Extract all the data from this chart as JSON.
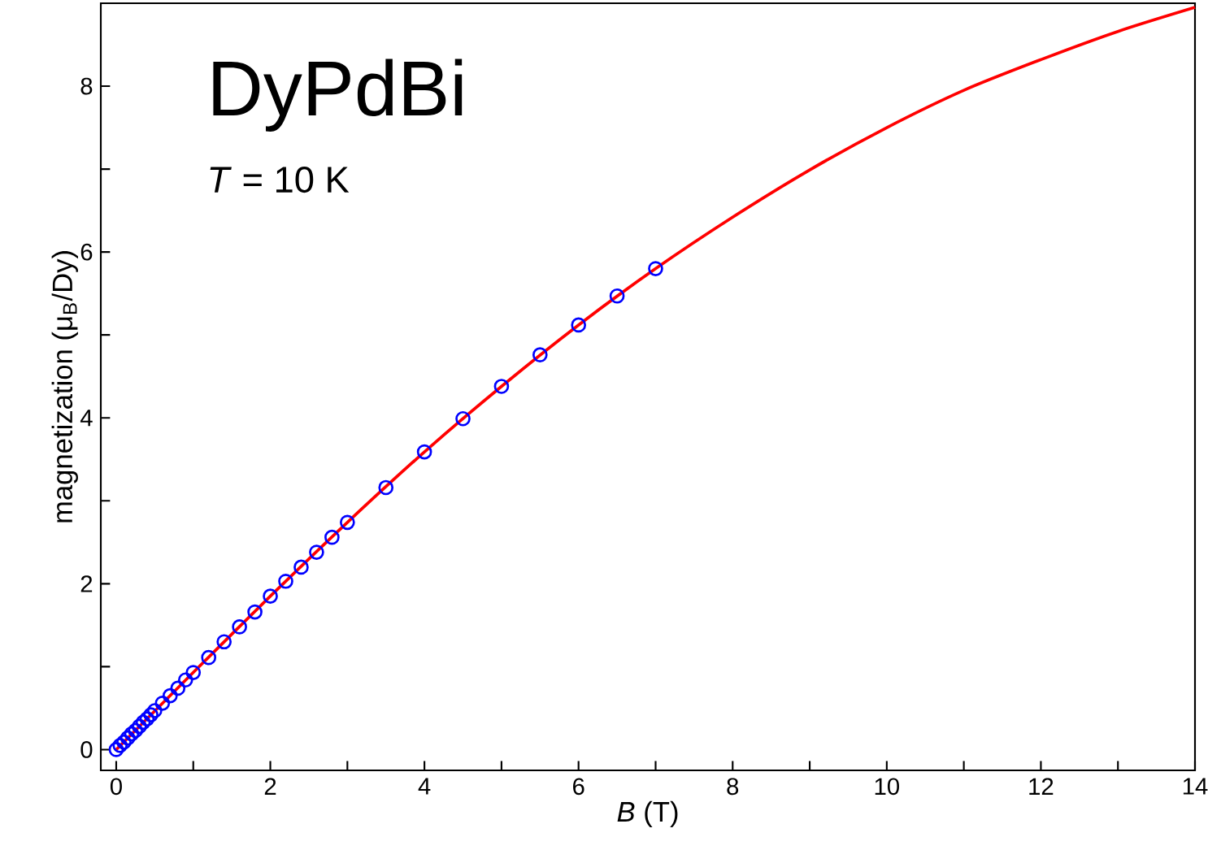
{
  "chart_data": {
    "type": "scatter",
    "xlabel": "*B* (T)",
    "ylabel": "magnetization (μ$_{B}$/Dy)",
    "annotations": [
      "DyPdBi",
      "*T* = 10 K"
    ],
    "xlim": [
      -0.2,
      14
    ],
    "ylim": [
      -0.25,
      9.0
    ],
    "xticks": [
      0,
      {
        "value": 1,
        "label": null
      },
      2,
      {
        "value": 3,
        "label": null
      },
      4,
      {
        "value": 5,
        "label": null
      },
      6,
      {
        "value": 7,
        "label": null
      },
      8,
      {
        "value": 9,
        "label": null
      },
      10,
      {
        "value": 11,
        "label": null
      },
      12,
      {
        "value": 13,
        "label": null
      },
      14
    ],
    "yticks": [
      0,
      {
        "value": 1,
        "label": null
      },
      2,
      {
        "value": 3,
        "label": null
      },
      4,
      {
        "value": 5,
        "label": null
      },
      6,
      {
        "value": 7,
        "label": null
      },
      8
    ],
    "grid": false,
    "series": [
      {
        "type": "line",
        "color": "#ff0000",
        "marker": "none",
        "line_style": "solid",
        "x": [
          0,
          1,
          2,
          3,
          4,
          5,
          6,
          7,
          8,
          9,
          10,
          11,
          12,
          13,
          14
        ],
        "values": [
          0,
          0.93,
          1.85,
          2.74,
          3.59,
          4.38,
          5.12,
          5.8,
          6.42,
          6.99,
          7.5,
          7.95,
          8.32,
          8.66,
          8.95
        ]
      },
      {
        "color": "#0000ff",
        "marker": "circle",
        "x": [
          0,
          0.05,
          0.1,
          0.15,
          0.2,
          0.25,
          0.3,
          0.35,
          0.4,
          0.45,
          0.5,
          0.6,
          0.7,
          0.8,
          0.9,
          1.0,
          1.2,
          1.4,
          1.6,
          1.8,
          2.0,
          2.2,
          2.4,
          2.6,
          2.8,
          3.0,
          3.5,
          4.0,
          4.5,
          5.0,
          5.5,
          6.0,
          6.5,
          7.0
        ],
        "values": [
          0,
          0.05,
          0.09,
          0.14,
          0.19,
          0.23,
          0.28,
          0.33,
          0.37,
          0.42,
          0.47,
          0.56,
          0.65,
          0.74,
          0.84,
          0.93,
          1.11,
          1.3,
          1.48,
          1.66,
          1.85,
          2.03,
          2.2,
          2.38,
          2.56,
          2.74,
          3.16,
          3.59,
          3.99,
          4.38,
          4.76,
          5.12,
          5.47,
          5.8
        ]
      }
    ]
  }
}
